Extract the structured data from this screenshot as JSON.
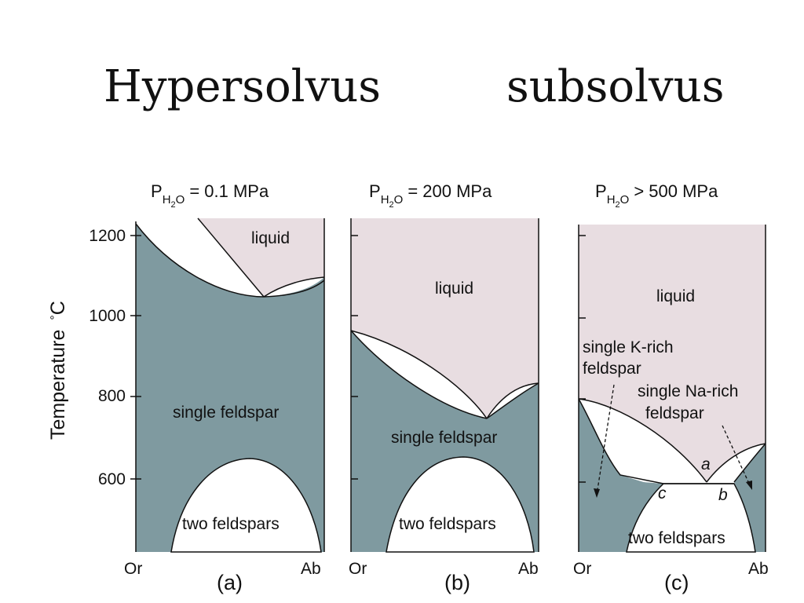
{
  "headings": {
    "left": "Hypersolvus",
    "right": "subsolvus"
  },
  "y_axis": {
    "label": "Temperature",
    "unit": "°C",
    "ticks": [
      "1200",
      "1000",
      "800",
      "600"
    ]
  },
  "x_axis": {
    "left_label": "Or",
    "right_label": "Ab"
  },
  "colors": {
    "liquid_fill": "#e8dde1",
    "solid_fill": "#7f9aa0",
    "two_phase_fill": "#ffffff",
    "outline": "#111111"
  },
  "panels": [
    {
      "pressure_symbol": "P",
      "pressure_subscript": "H",
      "pressure_subscript2": "2",
      "pressure_subscript3": "O",
      "pressure_value": "= 0.1 MPa",
      "caption": "(a)",
      "labels": {
        "liquid": "liquid",
        "single": "single feldspar",
        "two": "two feldspars"
      }
    },
    {
      "pressure_symbol": "P",
      "pressure_subscript": "H",
      "pressure_subscript2": "2",
      "pressure_subscript3": "O",
      "pressure_value": "= 200 MPa",
      "caption": "(b)",
      "labels": {
        "liquid": "liquid",
        "single": "single feldspar",
        "two": "two feldspars"
      }
    },
    {
      "pressure_symbol": "P",
      "pressure_subscript": "H",
      "pressure_subscript2": "2",
      "pressure_subscript3": "O",
      "pressure_value": "> 500 MPa",
      "caption": "(c)",
      "labels": {
        "liquid": "liquid",
        "k_rich_1": "single K-rich",
        "k_rich_2": "feldspar",
        "na_rich_1": "single Na-rich",
        "na_rich_2": "feldspar",
        "two": "two feldspars",
        "point_a": "a",
        "point_b": "b",
        "point_c": "c"
      }
    }
  ]
}
